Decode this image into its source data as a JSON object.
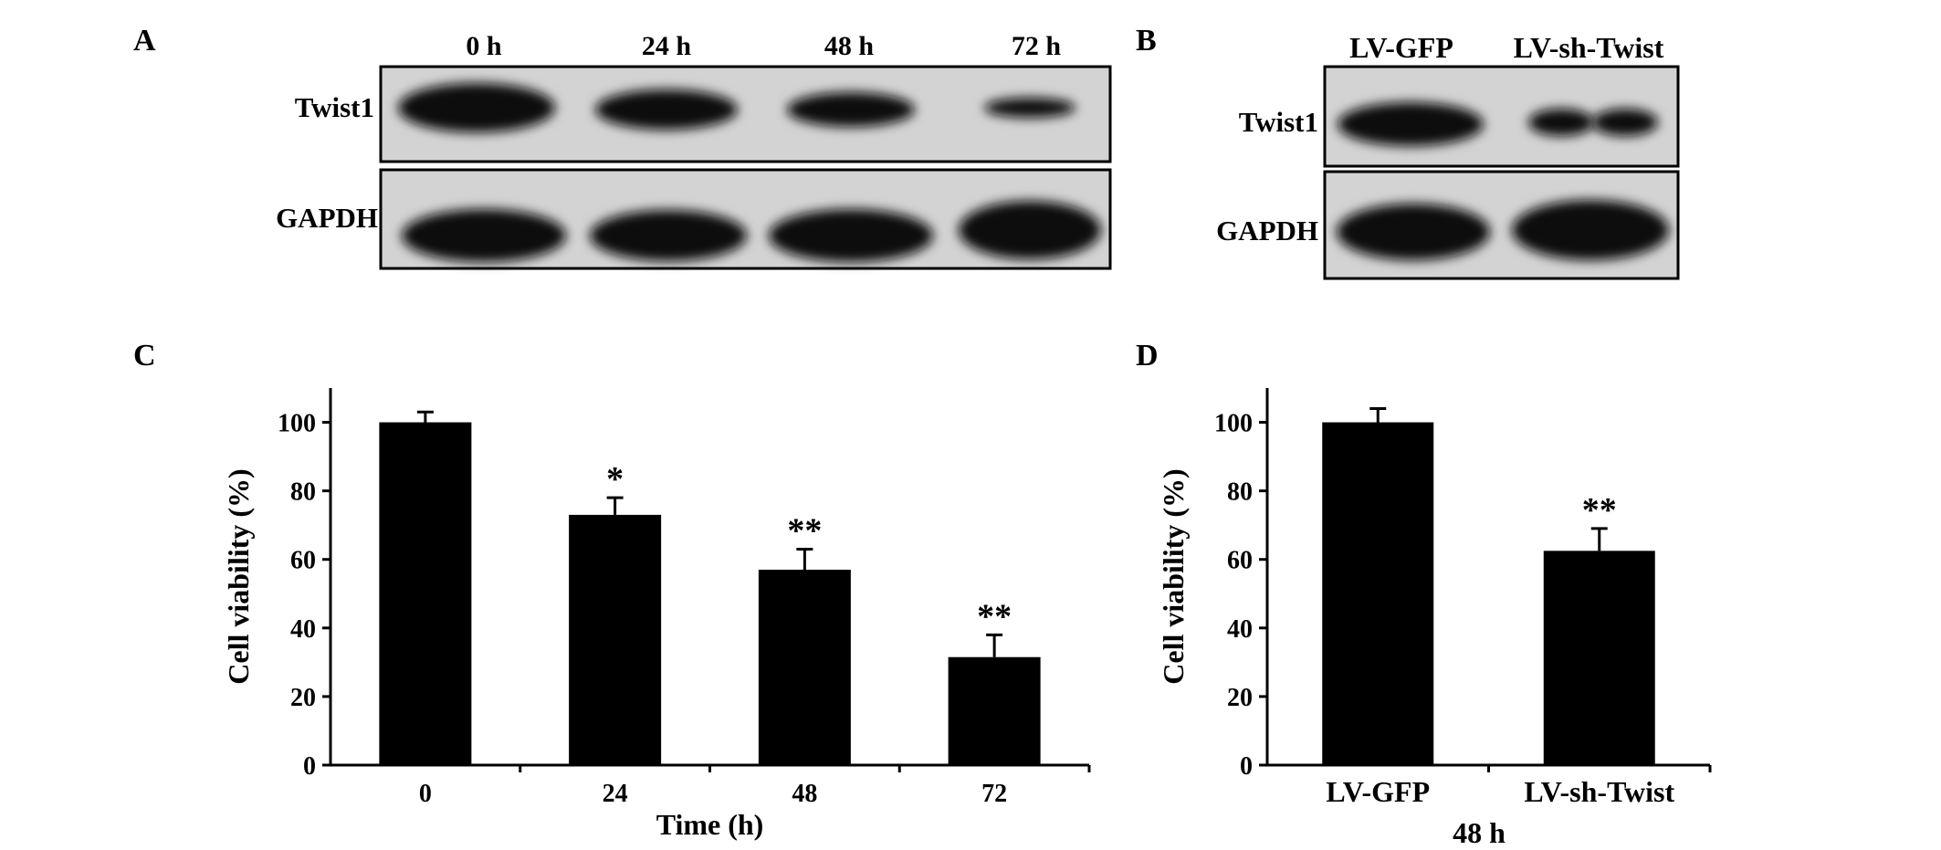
{
  "panels": {
    "a": {
      "label": "A",
      "lane_labels": [
        "0 h",
        "24 h",
        "48 h",
        "72 h"
      ],
      "row_labels": [
        "Twist1",
        "GAPDH"
      ],
      "band_intensity_twist1": [
        1.0,
        0.8,
        0.65,
        0.4
      ],
      "band_intensity_gapdh": [
        1.0,
        1.0,
        1.0,
        1.0
      ]
    },
    "b": {
      "label": "B",
      "lane_labels": [
        "LV-GFP",
        "LV-sh-Twist"
      ],
      "row_labels": [
        "Twist1",
        "GAPDH"
      ],
      "band_intensity_twist1": [
        1.0,
        0.6
      ],
      "band_intensity_gapdh": [
        1.0,
        1.0
      ]
    },
    "c": {
      "label": "C"
    },
    "d": {
      "label": "D",
      "group_label": "48 h"
    }
  },
  "chart_data": [
    {
      "type": "bar",
      "panel": "C",
      "categories": [
        "0",
        "24",
        "48",
        "72"
      ],
      "values": [
        100,
        73,
        57,
        31.5
      ],
      "error": [
        3,
        5,
        6,
        6.5
      ],
      "annotations": [
        "",
        "*",
        "**",
        "**"
      ],
      "title": "",
      "xlabel": "Time (h)",
      "ylabel": "Cell viability (%)",
      "ylim": [
        0,
        110
      ],
      "yticks": [
        0,
        20,
        40,
        60,
        80,
        100
      ],
      "bar_color": "#000000",
      "grid": false
    },
    {
      "type": "bar",
      "panel": "D",
      "categories": [
        "LV-GFP",
        "LV-sh-Twist"
      ],
      "values": [
        100,
        62.5
      ],
      "error": [
        4,
        6.5
      ],
      "annotations": [
        "",
        "**"
      ],
      "title": "",
      "xlabel": "",
      "ylabel": "Cell viability (%)",
      "ylim": [
        0,
        110
      ],
      "yticks": [
        0,
        20,
        40,
        60,
        80,
        100
      ],
      "bar_color": "#000000",
      "grid": false
    }
  ]
}
